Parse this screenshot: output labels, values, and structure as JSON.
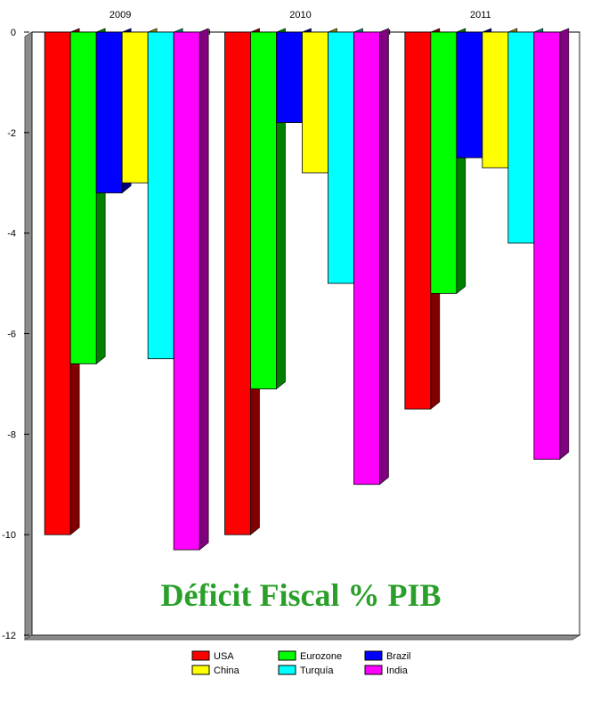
{
  "chart_data": {
    "type": "bar",
    "title": "Déficit Fiscal % PIB",
    "title_color": "#2aa02a",
    "categories": [
      "2009",
      "2010",
      "2011"
    ],
    "series": [
      {
        "name": "USA",
        "color": "#ff0000",
        "values": [
          -10.0,
          -10.0,
          -7.5
        ]
      },
      {
        "name": "Eurozone",
        "color": "#00ff00",
        "values": [
          -6.6,
          -7.1,
          -5.2
        ]
      },
      {
        "name": "Brazil",
        "color": "#0000ff",
        "values": [
          -3.2,
          -1.8,
          -2.5
        ]
      },
      {
        "name": "China",
        "color": "#ffff00",
        "values": [
          -3.0,
          -2.8,
          -2.7
        ]
      },
      {
        "name": "Turquía",
        "color": "#00ffff",
        "values": [
          -6.5,
          -5.0,
          -4.2
        ]
      },
      {
        "name": "India",
        "color": "#ff00ff",
        "values": [
          -10.3,
          -9.0,
          -8.5
        ]
      }
    ],
    "ylim": [
      -12,
      0
    ],
    "yticks": [
      "0",
      "-2",
      "-4",
      "-6",
      "-8",
      "-10",
      "-12"
    ],
    "ytick_values": [
      0,
      -2,
      -4,
      -6,
      -8,
      -10,
      -12
    ],
    "grid": false,
    "legend_position": "bottom",
    "legend_rows": [
      [
        "USA",
        "Eurozone",
        "Brazil"
      ],
      [
        "China",
        "Turquía",
        "India"
      ]
    ]
  }
}
